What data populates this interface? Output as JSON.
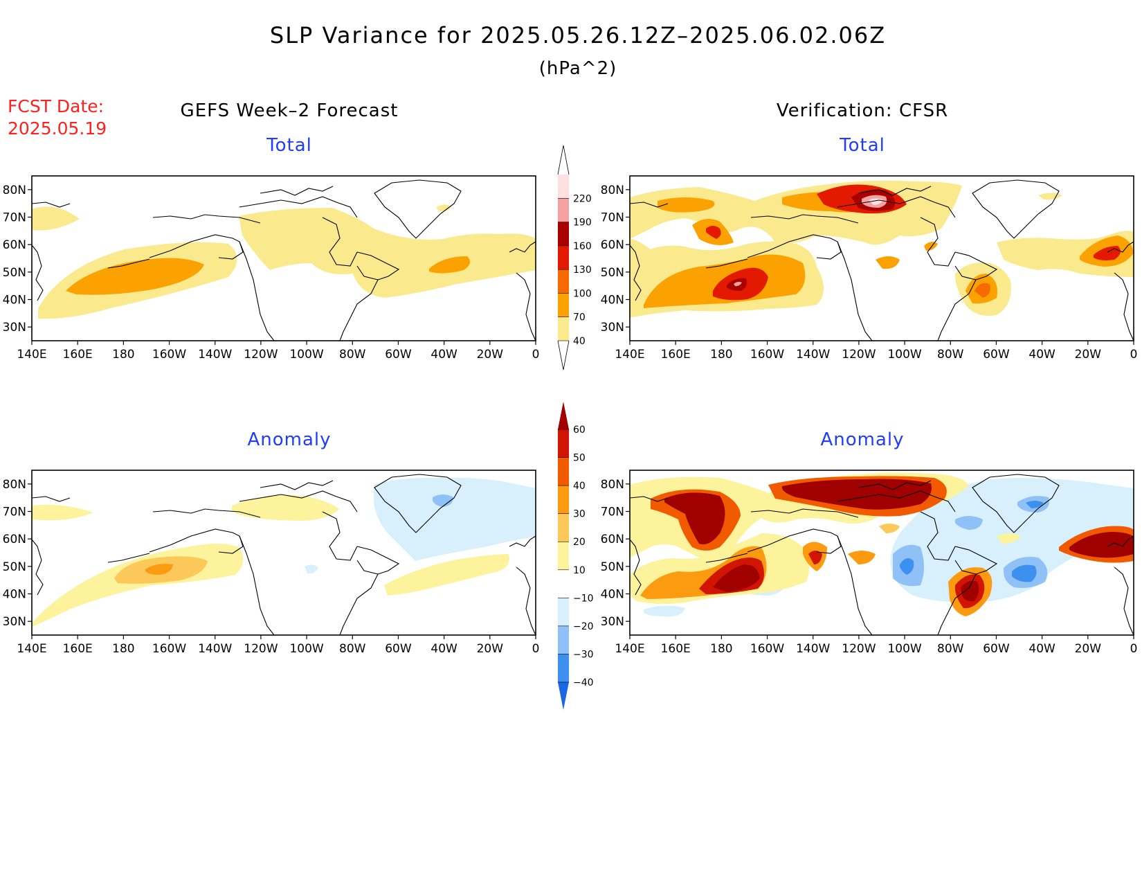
{
  "title": "SLP Variance for 2025.05.26.12Z–2025.06.02.06Z",
  "subtitle": "(hPa^2)",
  "fcst_label": "FCST Date:",
  "fcst_date": "2025.05.19",
  "left_column_title": "GEFS Week–2 Forecast",
  "right_column_title": "Verification: CFSR",
  "panel_titles": {
    "forecast_total": "Total",
    "verification_total": "Total",
    "forecast_anomaly": "Anomaly",
    "verification_anomaly": "Anomaly"
  },
  "lat_labels": [
    "80N",
    "70N",
    "60N",
    "50N",
    "40N",
    "30N"
  ],
  "lon_labels": [
    "140E",
    "160E",
    "180",
    "160W",
    "140W",
    "120W",
    "100W",
    "80W",
    "60W",
    "40W",
    "20W",
    "0"
  ],
  "total_colorbar": {
    "ticks": [
      "40",
      "70",
      "100",
      "130",
      "160",
      "190",
      "220"
    ],
    "colors": [
      "#fbe98e",
      "#fca200",
      "#f66b00",
      "#e41a00",
      "#ab0000",
      "#f4a1a1",
      "#fde0e0"
    ]
  },
  "anomaly_colorbar": {
    "ticks": [
      "−40",
      "−30",
      "−20",
      "−10",
      "10",
      "20",
      "30",
      "40",
      "50",
      "60"
    ],
    "colors": [
      "#1b66e4",
      "#3d8ff0",
      "#8fc1f7",
      "#d8f0fb",
      "#ffffff",
      "#fdf39c",
      "#fdc85a",
      "#fc9a10",
      "#f25a00",
      "#d21500",
      "#a00000"
    ]
  },
  "colors": {
    "title": "#000000",
    "fcst": "#ff2020",
    "panel_title": "#1f3cff"
  }
}
